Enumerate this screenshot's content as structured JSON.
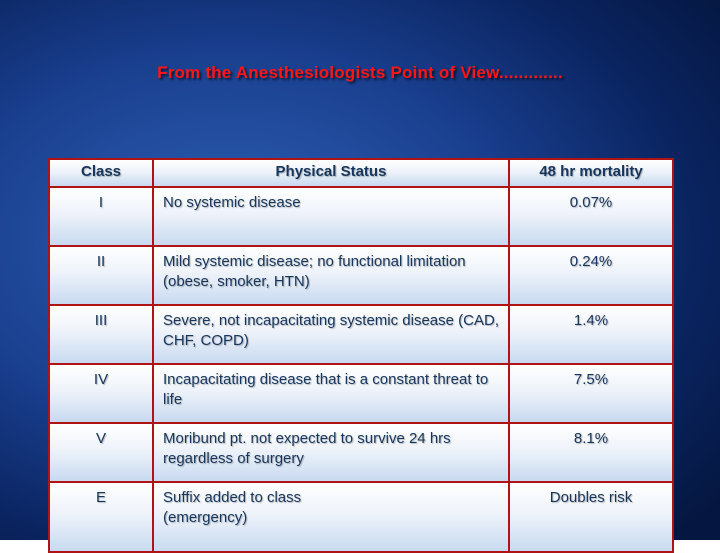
{
  "title": "From the Anesthesiologists Point of View.............",
  "colors": {
    "background_top": "#0a2460",
    "background_highlight": "#2f62b5",
    "title_text": "#ff1515",
    "table_border": "#b01313",
    "cell_text": "#17365d",
    "cell_background_top": "#ffffff",
    "cell_background_bottom": "#c8daf0"
  },
  "table": {
    "headers": [
      "Class",
      "Physical Status",
      "48 hr mortality"
    ],
    "rows": [
      {
        "class": "I",
        "status": "No systemic disease",
        "mortality": "0.07%"
      },
      {
        "class": "II",
        "status": "Mild systemic disease; no functional limitation (obese, smoker, HTN)",
        "mortality": "0.24%"
      },
      {
        "class": "III",
        "status": "Severe, not incapacitating systemic disease (CAD, CHF, COPD)",
        "mortality": "1.4%"
      },
      {
        "class": "IV",
        "status": "Incapacitating disease that is a constant threat to life",
        "mortality": "7.5%"
      },
      {
        "class": "V",
        "status": "Moribund pt. not expected to survive 24 hrs regardless of surgery",
        "mortality": "8.1%"
      },
      {
        "class": "E",
        "status": "Suffix added to class\n(emergency)",
        "mortality": "Doubles risk"
      }
    ]
  }
}
